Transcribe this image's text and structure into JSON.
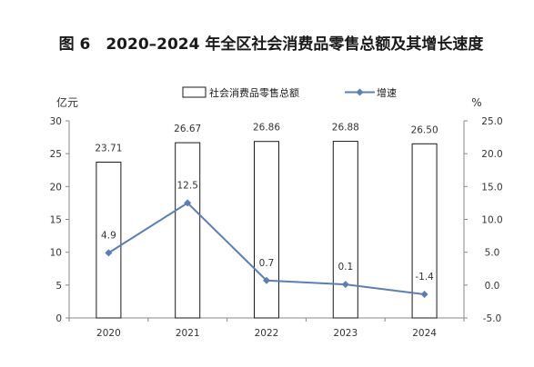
{
  "chart_data": {
    "type": "bar+line",
    "title": "图 6　2020–2024 年全区社会消费品零售总额及其增长速度",
    "categories": [
      "2020",
      "2021",
      "2022",
      "2023",
      "2024"
    ],
    "series": [
      {
        "name": "社会消费品零售总额",
        "type": "bar",
        "axis": "left",
        "values": [
          23.71,
          26.67,
          26.86,
          26.88,
          26.5
        ],
        "labels": [
          "23.71",
          "26.67",
          "26.86",
          "26.88",
          "26.50"
        ]
      },
      {
        "name": "增速",
        "type": "line",
        "axis": "right",
        "values": [
          4.9,
          12.5,
          0.7,
          0.1,
          -1.4
        ],
        "labels": [
          "4.9",
          "12.5",
          "0.7",
          "0.1",
          "-1.4"
        ]
      }
    ],
    "y_left": {
      "unit": "亿元",
      "ylim": [
        0,
        30
      ],
      "ticks": [
        "0",
        "5",
        "10",
        "15",
        "20",
        "25",
        "30"
      ]
    },
    "y_right": {
      "unit": "%",
      "ylim": [
        -5,
        25
      ],
      "ticks": [
        "-5.0",
        "0.0",
        "5.0",
        "10.0",
        "15.0",
        "20.0",
        "25.0"
      ]
    },
    "legend_position": "top",
    "grid": false,
    "colors": {
      "bar_fill": "#ffffff",
      "bar_stroke": "#1a1a1a",
      "line": "#5b7fb5",
      "axis": "#888888"
    }
  }
}
